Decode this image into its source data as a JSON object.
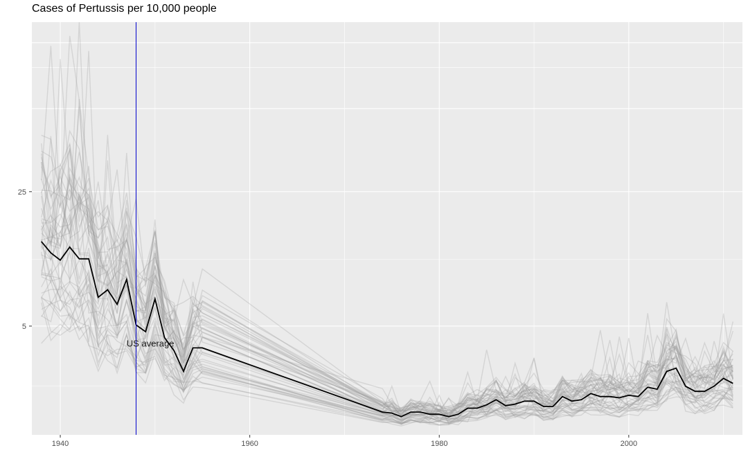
{
  "chart_data": {
    "type": "line",
    "title": "Cases of Pertussis per 10,000 people",
    "xlabel": "",
    "ylabel": "",
    "scale_y": "sqrt",
    "xlim": [
      1937,
      2012
    ],
    "ylim": [
      0,
      72
    ],
    "x_ticks": [
      1940,
      1960,
      1980,
      2000
    ],
    "y_ticks": [
      5,
      25
    ],
    "grid": true,
    "legend": "none",
    "colors": {
      "panel": "#ebebeb",
      "grid": "#ffffff",
      "states": "#9a9a9a",
      "average": "#000000",
      "marker": "#0000cc"
    },
    "reference_line": {
      "x": 1948,
      "label": ""
    },
    "annotation": {
      "text": "US average",
      "x": 1947,
      "y": 3.3
    },
    "series": [
      {
        "name": "US average",
        "x": [
          1938,
          1939,
          1940,
          1941,
          1942,
          1943,
          1944,
          1945,
          1946,
          1947,
          1948,
          1949,
          1950,
          1951,
          1952,
          1953,
          1954,
          1955,
          1974,
          1975,
          1976,
          1977,
          1978,
          1979,
          1980,
          1981,
          1982,
          1983,
          1984,
          1985,
          1986,
          1987,
          1988,
          1989,
          1990,
          1991,
          1992,
          1993,
          1994,
          1995,
          1996,
          1997,
          1998,
          1999,
          2000,
          2001,
          2002,
          2003,
          2004,
          2005,
          2006,
          2007,
          2008,
          2009,
          2010,
          2011
        ],
        "y": [
          15.8,
          14.0,
          12.9,
          14.9,
          13.1,
          13.1,
          8.0,
          8.9,
          7.2,
          10.2,
          5.1,
          4.5,
          7.8,
          4.0,
          3.0,
          1.7,
          3.2,
          3.2,
          0.22,
          0.2,
          0.14,
          0.22,
          0.22,
          0.18,
          0.18,
          0.14,
          0.18,
          0.3,
          0.3,
          0.38,
          0.52,
          0.36,
          0.4,
          0.48,
          0.48,
          0.34,
          0.34,
          0.62,
          0.48,
          0.52,
          0.72,
          0.62,
          0.62,
          0.58,
          0.66,
          0.62,
          0.96,
          0.88,
          1.7,
          1.88,
          1.0,
          0.8,
          0.8,
          1.0,
          1.35,
          1.12
        ]
      }
    ]
  }
}
